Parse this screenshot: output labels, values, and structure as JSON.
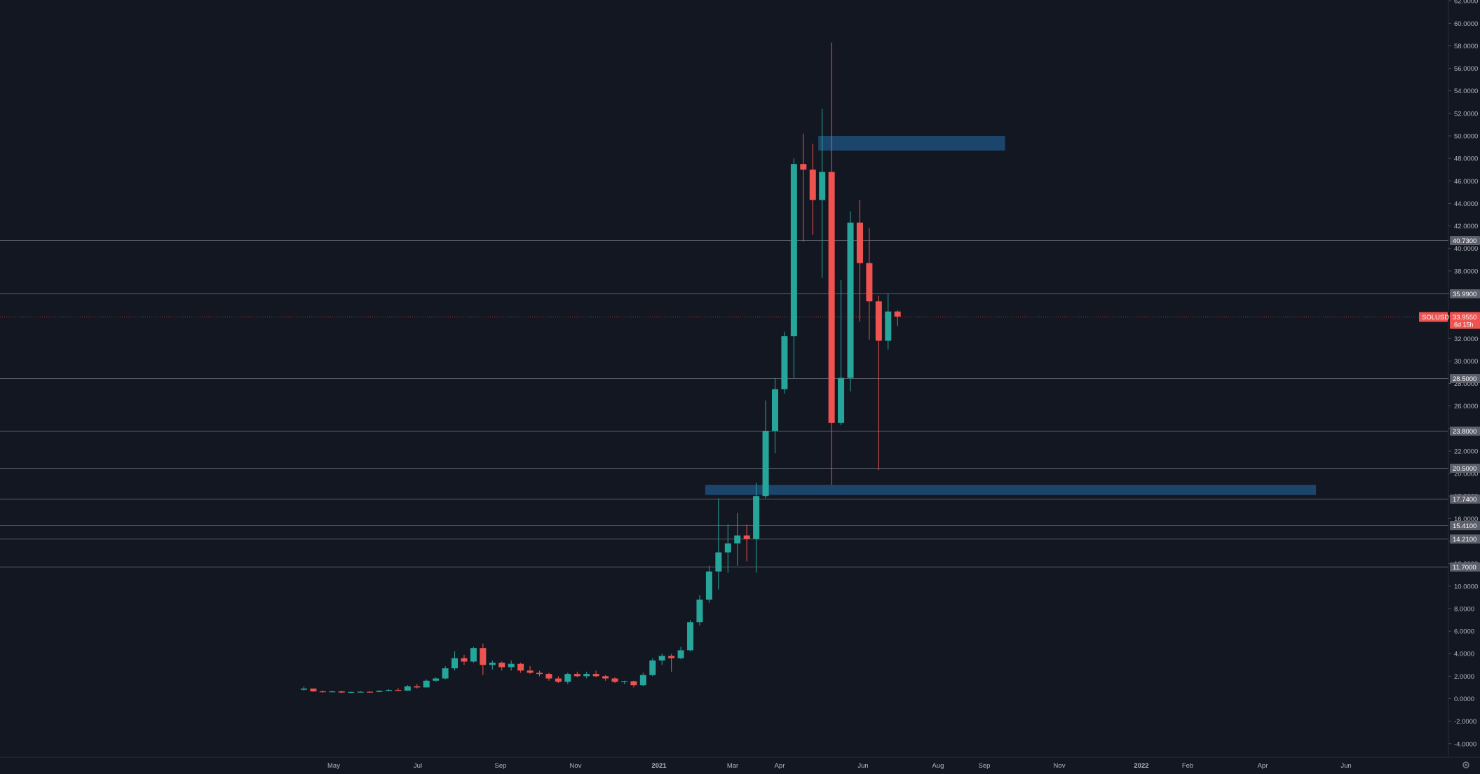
{
  "chart_data": {
    "type": "candlestick",
    "symbol_label": "SOLUSD",
    "last_price_label": "33.9550",
    "countdown_label": "6d 15h",
    "x_tick_labels": [
      "May",
      "Jul",
      "Sep",
      "Nov",
      "2021",
      "Mar",
      "Apr",
      "Jun",
      "Aug",
      "Sep",
      "Nov",
      "2022",
      "Feb",
      "Apr",
      "Jun"
    ],
    "y_range": [
      -5,
      62
    ],
    "y_tick_values": [
      -4,
      -2,
      0,
      2,
      4,
      6,
      8,
      10,
      12,
      14,
      16,
      18,
      20,
      22,
      24,
      26,
      28,
      30,
      32,
      34,
      36,
      38,
      40,
      42,
      44,
      46,
      48,
      50,
      52,
      54,
      56,
      58,
      60,
      62
    ],
    "y_tick_decimals": 4,
    "horizontal_levels": [
      {
        "value": 40.73,
        "label": "40.7300"
      },
      {
        "value": 35.99,
        "label": "35.9900"
      },
      {
        "value": 28.5,
        "label": "28.5000"
      },
      {
        "value": 23.8,
        "label": "23.8000"
      },
      {
        "value": 20.5,
        "label": "20.5000"
      },
      {
        "value": 17.74,
        "label": "17.7400"
      },
      {
        "value": 15.41,
        "label": "15.4100"
      },
      {
        "value": 14.21,
        "label": "14.2100"
      },
      {
        "value": 11.7,
        "label": "11.7000"
      }
    ],
    "zones": [
      {
        "from_bar": 55,
        "to_bar": 74,
        "low": 48.7,
        "high": 50.0
      },
      {
        "from_bar": 43,
        "to_bar": 107,
        "low": 18.1,
        "high": 19.0
      }
    ],
    "candles": [
      {
        "o": 0.8,
        "h": 1.1,
        "l": 0.7,
        "c": 0.9
      },
      {
        "o": 0.9,
        "h": 0.9,
        "l": 0.6,
        "c": 0.65
      },
      {
        "o": 0.65,
        "h": 0.75,
        "l": 0.55,
        "c": 0.6
      },
      {
        "o": 0.6,
        "h": 0.72,
        "l": 0.55,
        "c": 0.65
      },
      {
        "o": 0.65,
        "h": 0.7,
        "l": 0.5,
        "c": 0.55
      },
      {
        "o": 0.55,
        "h": 0.65,
        "l": 0.5,
        "c": 0.6
      },
      {
        "o": 0.6,
        "h": 0.68,
        "l": 0.55,
        "c": 0.62
      },
      {
        "o": 0.62,
        "h": 0.7,
        "l": 0.57,
        "c": 0.6
      },
      {
        "o": 0.6,
        "h": 0.75,
        "l": 0.57,
        "c": 0.7
      },
      {
        "o": 0.7,
        "h": 0.85,
        "l": 0.65,
        "c": 0.78
      },
      {
        "o": 0.78,
        "h": 0.95,
        "l": 0.7,
        "c": 0.72
      },
      {
        "o": 0.72,
        "h": 1.2,
        "l": 0.7,
        "c": 1.1
      },
      {
        "o": 1.1,
        "h": 1.3,
        "l": 0.9,
        "c": 1.0
      },
      {
        "o": 1.0,
        "h": 1.7,
        "l": 1.0,
        "c": 1.6
      },
      {
        "o": 1.6,
        "h": 1.9,
        "l": 1.5,
        "c": 1.8
      },
      {
        "o": 1.8,
        "h": 2.9,
        "l": 1.7,
        "c": 2.7
      },
      {
        "o": 2.7,
        "h": 4.2,
        "l": 2.5,
        "c": 3.6
      },
      {
        "o": 3.6,
        "h": 3.9,
        "l": 3.0,
        "c": 3.3
      },
      {
        "o": 3.3,
        "h": 4.6,
        "l": 3.2,
        "c": 4.5
      },
      {
        "o": 4.5,
        "h": 4.9,
        "l": 2.1,
        "c": 3.0
      },
      {
        "o": 3.0,
        "h": 3.4,
        "l": 2.6,
        "c": 3.2
      },
      {
        "o": 3.2,
        "h": 3.3,
        "l": 2.5,
        "c": 2.8
      },
      {
        "o": 2.8,
        "h": 3.4,
        "l": 2.5,
        "c": 3.1
      },
      {
        "o": 3.1,
        "h": 3.2,
        "l": 2.3,
        "c": 2.5
      },
      {
        "o": 2.5,
        "h": 2.9,
        "l": 2.2,
        "c": 2.3
      },
      {
        "o": 2.3,
        "h": 2.5,
        "l": 2.0,
        "c": 2.2
      },
      {
        "o": 2.2,
        "h": 2.3,
        "l": 1.6,
        "c": 1.8
      },
      {
        "o": 1.8,
        "h": 2.0,
        "l": 1.4,
        "c": 1.5
      },
      {
        "o": 1.5,
        "h": 2.3,
        "l": 1.3,
        "c": 2.2
      },
      {
        "o": 2.2,
        "h": 2.4,
        "l": 1.9,
        "c": 2.0
      },
      {
        "o": 2.0,
        "h": 2.4,
        "l": 1.8,
        "c": 2.2
      },
      {
        "o": 2.2,
        "h": 2.5,
        "l": 1.9,
        "c": 2.0
      },
      {
        "o": 2.0,
        "h": 2.1,
        "l": 1.6,
        "c": 1.8
      },
      {
        "o": 1.8,
        "h": 1.9,
        "l": 1.4,
        "c": 1.5
      },
      {
        "o": 1.5,
        "h": 1.6,
        "l": 1.3,
        "c": 1.55
      },
      {
        "o": 1.55,
        "h": 1.6,
        "l": 1.0,
        "c": 1.2
      },
      {
        "o": 1.2,
        "h": 2.3,
        "l": 1.1,
        "c": 2.1
      },
      {
        "o": 2.1,
        "h": 3.6,
        "l": 2.0,
        "c": 3.4
      },
      {
        "o": 3.4,
        "h": 4.0,
        "l": 3.0,
        "c": 3.8
      },
      {
        "o": 3.8,
        "h": 4.0,
        "l": 2.4,
        "c": 3.6
      },
      {
        "o": 3.6,
        "h": 4.6,
        "l": 3.5,
        "c": 4.3
      },
      {
        "o": 4.3,
        "h": 7.0,
        "l": 4.2,
        "c": 6.8
      },
      {
        "o": 6.8,
        "h": 9.2,
        "l": 6.5,
        "c": 8.8
      },
      {
        "o": 8.8,
        "h": 11.8,
        "l": 8.5,
        "c": 11.3
      },
      {
        "o": 11.3,
        "h": 17.8,
        "l": 9.7,
        "c": 13.0
      },
      {
        "o": 13.0,
        "h": 15.5,
        "l": 11.2,
        "c": 13.8
      },
      {
        "o": 13.8,
        "h": 16.5,
        "l": 11.8,
        "c": 14.5
      },
      {
        "o": 14.5,
        "h": 15.5,
        "l": 12.2,
        "c": 14.2
      },
      {
        "o": 14.2,
        "h": 19.2,
        "l": 11.2,
        "c": 18.0
      },
      {
        "o": 18.0,
        "h": 26.5,
        "l": 17.8,
        "c": 23.8
      },
      {
        "o": 23.8,
        "h": 28.5,
        "l": 21.8,
        "c": 27.5
      },
      {
        "o": 27.5,
        "h": 32.6,
        "l": 27.1,
        "c": 32.2
      },
      {
        "o": 32.2,
        "h": 48.0,
        "l": 28.5,
        "c": 47.5
      },
      {
        "o": 47.5,
        "h": 50.2,
        "l": 40.6,
        "c": 47.0
      },
      {
        "o": 47.0,
        "h": 49.3,
        "l": 41.2,
        "c": 44.3
      },
      {
        "o": 44.3,
        "h": 52.4,
        "l": 37.4,
        "c": 46.8
      },
      {
        "o": 46.8,
        "h": 58.3,
        "l": 19.0,
        "c": 24.5
      },
      {
        "o": 24.5,
        "h": 37.2,
        "l": 24.3,
        "c": 28.5
      },
      {
        "o": 28.5,
        "h": 43.3,
        "l": 27.3,
        "c": 42.3
      },
      {
        "o": 42.3,
        "h": 44.3,
        "l": 33.5,
        "c": 38.7
      },
      {
        "o": 38.7,
        "h": 41.8,
        "l": 31.9,
        "c": 35.3
      },
      {
        "o": 35.3,
        "h": 35.8,
        "l": 20.3,
        "c": 31.8
      },
      {
        "o": 31.8,
        "h": 36.0,
        "l": 31.0,
        "c": 34.4
      },
      {
        "o": 34.4,
        "h": 34.5,
        "l": 33.1,
        "c": 33.955
      }
    ],
    "colors": {
      "up": "#26a69a",
      "down": "#ef5350",
      "zone": "#1f4e79",
      "level_line": "#787b86",
      "price_line": "#ef5350",
      "axis_text": "#b2b5be",
      "background": "#131722"
    }
  }
}
